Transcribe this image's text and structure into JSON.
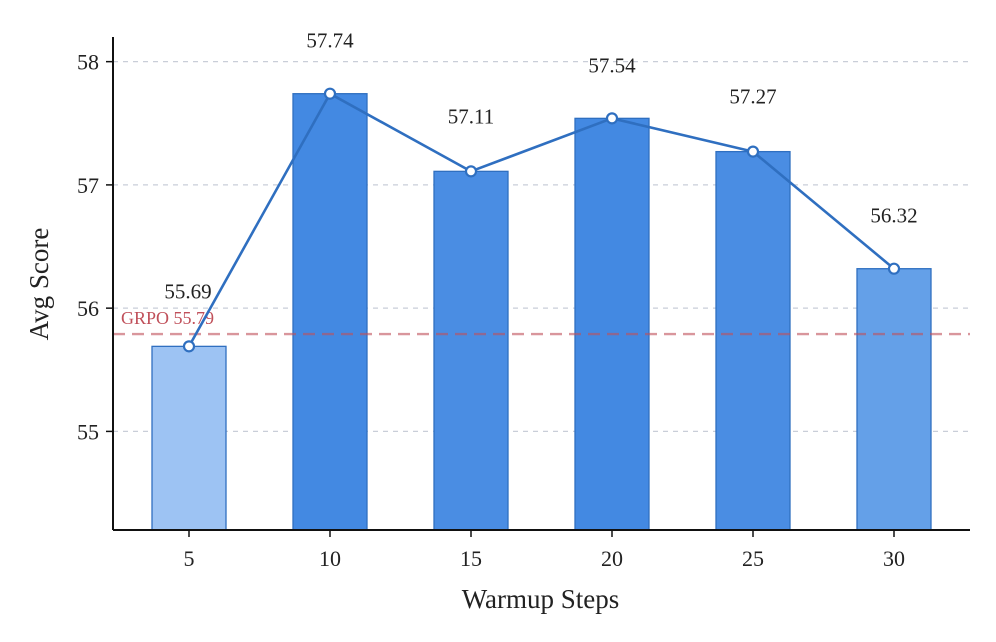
{
  "chart_data": {
    "type": "bar",
    "title": "",
    "xlabel": "Warmup Steps",
    "ylabel": "Avg Score",
    "categories": [
      "5",
      "10",
      "15",
      "20",
      "25",
      "30"
    ],
    "values": [
      55.69,
      57.74,
      57.11,
      57.54,
      57.27,
      56.32
    ],
    "value_labels": [
      "55.69",
      "57.74",
      "57.11",
      "57.54",
      "57.27",
      "56.32"
    ],
    "bar_colors": [
      "#9dc3f3",
      "#4389e2",
      "#4a8de3",
      "#4389e2",
      "#4a8de3",
      "#64a0e8"
    ],
    "line_overlay": {
      "values": [
        55.69,
        57.74,
        57.11,
        57.54,
        57.27,
        56.32
      ],
      "color": "#2f6fc0"
    },
    "reference_line": {
      "label": "GRPO 55.79",
      "value": 55.79,
      "color": "#c0505a",
      "style": "dashed"
    },
    "yticks": [
      55,
      56,
      57,
      58
    ],
    "ylim": [
      54.2,
      58.2
    ],
    "grid": "horizontal dashed"
  }
}
